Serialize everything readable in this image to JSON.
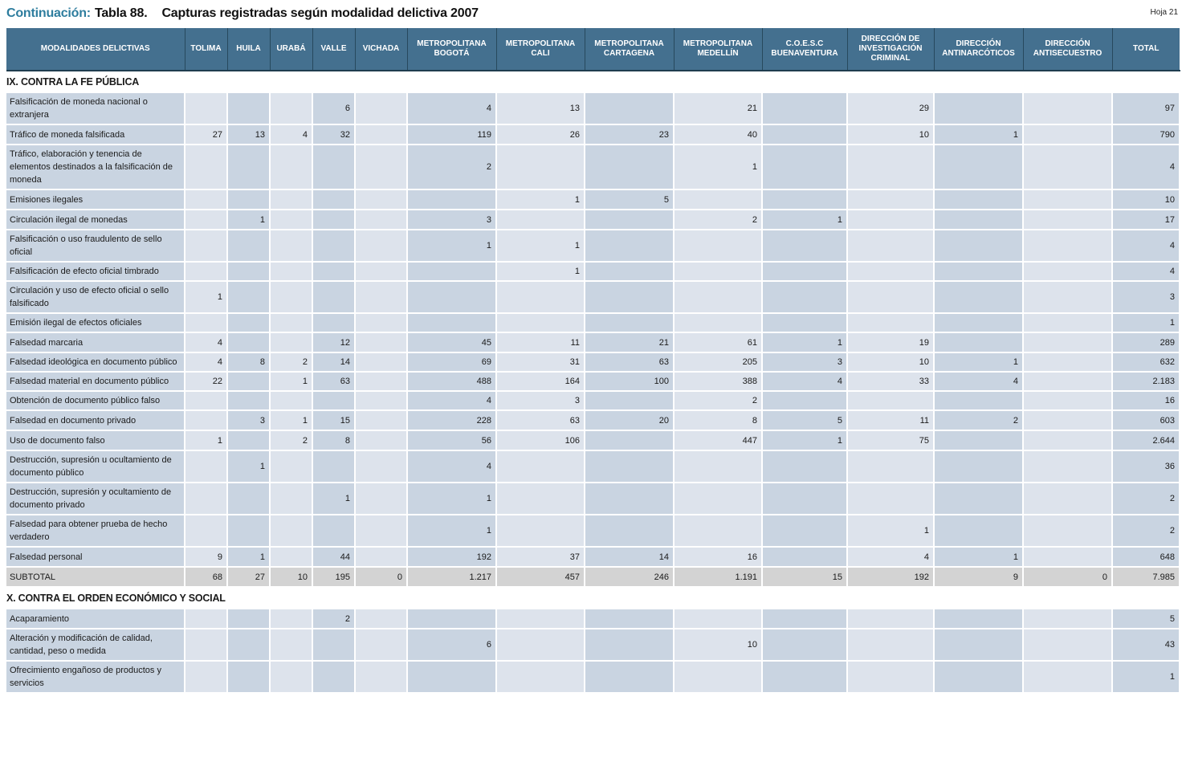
{
  "page": {
    "title_prefix": "Continuación:",
    "title_table": "Tabla 88.",
    "title_text": "Capturas registradas según modalidad delictiva 2007",
    "sheet_label": "Hoja 21"
  },
  "colors": {
    "header_bg": "#44708f",
    "header_text": "#ffffff",
    "header_divider": "#27495d",
    "cell_dark": "#c9d4e1",
    "cell_light": "#dde3ec",
    "subtotal_bg": "#d3d3d3",
    "title_accent": "#2e7d9e"
  },
  "chart_data": {
    "type": "table",
    "title": "Continuación: Tabla 88. Capturas registradas según modalidad delictiva 2007"
  },
  "table": {
    "columns": [
      "MODALIDADES DELICTIVAS",
      "TOLIMA",
      "HUILA",
      "URABÁ",
      "VALLE",
      "VICHADA",
      "METROPOLITANA BOGOTÁ",
      "METROPOLITANA CALI",
      "METROPOLITANA CARTAGENA",
      "METROPOLITANA MEDELLÍN",
      "C.O.E.S.C BUENAVENTURA",
      "DIRECCIÓN DE INVESTIGACIÓN CRIMINAL",
      "DIRECCIÓN ANTINARCÓTICOS",
      "DIRECCIÓN ANTISECUESTRO",
      "TOTAL"
    ],
    "sections": [
      {
        "title": "IX. CONTRA LA FE PÚBLICA",
        "rows": [
          {
            "label": "Falsificación de moneda nacional o extranjera",
            "values": [
              "",
              "",
              "",
              "6",
              "",
              "4",
              "13",
              "",
              "21",
              "",
              "29",
              "",
              "",
              "97"
            ]
          },
          {
            "label": "Tráfico de moneda falsificada",
            "values": [
              "27",
              "13",
              "4",
              "32",
              "",
              "119",
              "26",
              "23",
              "40",
              "",
              "10",
              "1",
              "",
              "790"
            ]
          },
          {
            "label": "Tráfico, elaboración y tenencia de elementos destinados a la falsificación de moneda",
            "values": [
              "",
              "",
              "",
              "",
              "",
              "2",
              "",
              "",
              "1",
              "",
              "",
              "",
              "",
              "4"
            ]
          },
          {
            "label": "Emisiones ilegales",
            "values": [
              "",
              "",
              "",
              "",
              "",
              "",
              "1",
              "5",
              "",
              "",
              "",
              "",
              "",
              "10"
            ]
          },
          {
            "label": "Circulación ilegal de monedas",
            "values": [
              "",
              "1",
              "",
              "",
              "",
              "3",
              "",
              "",
              "2",
              "1",
              "",
              "",
              "",
              "17"
            ]
          },
          {
            "label": "Falsificación o uso fraudulento de sello oficial",
            "values": [
              "",
              "",
              "",
              "",
              "",
              "1",
              "1",
              "",
              "",
              "",
              "",
              "",
              "",
              "4"
            ]
          },
          {
            "label": "Falsificación de efecto oficial timbrado",
            "values": [
              "",
              "",
              "",
              "",
              "",
              "",
              "1",
              "",
              "",
              "",
              "",
              "",
              "",
              "4"
            ]
          },
          {
            "label": "Circulación y uso de efecto oficial o sello falsificado",
            "values": [
              "1",
              "",
              "",
              "",
              "",
              "",
              "",
              "",
              "",
              "",
              "",
              "",
              "",
              "3"
            ]
          },
          {
            "label": "Emisión ilegal de efectos oficiales",
            "values": [
              "",
              "",
              "",
              "",
              "",
              "",
              "",
              "",
              "",
              "",
              "",
              "",
              "",
              "1"
            ]
          },
          {
            "label": "Falsedad marcaria",
            "values": [
              "4",
              "",
              "",
              "12",
              "",
              "45",
              "11",
              "21",
              "61",
              "1",
              "19",
              "",
              "",
              "289"
            ]
          },
          {
            "label": "Falsedad ideológica en documento público",
            "values": [
              "4",
              "8",
              "2",
              "14",
              "",
              "69",
              "31",
              "63",
              "205",
              "3",
              "10",
              "1",
              "",
              "632"
            ]
          },
          {
            "label": "Falsedad material en documento público",
            "values": [
              "22",
              "",
              "1",
              "63",
              "",
              "488",
              "164",
              "100",
              "388",
              "4",
              "33",
              "4",
              "",
              "2.183"
            ]
          },
          {
            "label": "Obtención de documento público falso",
            "values": [
              "",
              "",
              "",
              "",
              "",
              "4",
              "3",
              "",
              "2",
              "",
              "",
              "",
              "",
              "16"
            ]
          },
          {
            "label": "Falsedad en documento privado",
            "values": [
              "",
              "3",
              "1",
              "15",
              "",
              "228",
              "63",
              "20",
              "8",
              "5",
              "11",
              "2",
              "",
              "603"
            ]
          },
          {
            "label": "Uso de documento falso",
            "values": [
              "1",
              "",
              "2",
              "8",
              "",
              "56",
              "106",
              "",
              "447",
              "1",
              "75",
              "",
              "",
              "2.644"
            ]
          },
          {
            "label": "Destrucción, supresión u ocultamiento de documento público",
            "values": [
              "",
              "1",
              "",
              "",
              "",
              "4",
              "",
              "",
              "",
              "",
              "",
              "",
              "",
              "36"
            ]
          },
          {
            "label": "Destrucción, supresión y ocultamiento de documento privado",
            "values": [
              "",
              "",
              "",
              "1",
              "",
              "1",
              "",
              "",
              "",
              "",
              "",
              "",
              "",
              "2"
            ]
          },
          {
            "label": "Falsedad para obtener prueba de hecho verdadero",
            "values": [
              "",
              "",
              "",
              "",
              "",
              "1",
              "",
              "",
              "",
              "",
              "1",
              "",
              "",
              "2"
            ]
          },
          {
            "label": "Falsedad personal",
            "values": [
              "9",
              "1",
              "",
              "44",
              "",
              "192",
              "37",
              "14",
              "16",
              "",
              "4",
              "1",
              "",
              "648"
            ]
          }
        ],
        "subtotal": {
          "label": "SUBTOTAL",
          "values": [
            "68",
            "27",
            "10",
            "195",
            "0",
            "1.217",
            "457",
            "246",
            "1.191",
            "15",
            "192",
            "9",
            "0",
            "7.985"
          ]
        }
      },
      {
        "title": "X. CONTRA EL ORDEN ECONÓMICO Y SOCIAL",
        "rows": [
          {
            "label": "Acaparamiento",
            "values": [
              "",
              "",
              "",
              "2",
              "",
              "",
              "",
              "",
              "",
              "",
              "",
              "",
              "",
              "5"
            ]
          },
          {
            "label": "Alteración y modificación de calidad, cantidad, peso o medida",
            "values": [
              "",
              "",
              "",
              "",
              "",
              "6",
              "",
              "",
              "10",
              "",
              "",
              "",
              "",
              "43"
            ]
          },
          {
            "label": "Ofrecimiento engañoso de productos y servicios",
            "values": [
              "",
              "",
              "",
              "",
              "",
              "",
              "",
              "",
              "",
              "",
              "",
              "",
              "",
              "1"
            ]
          }
        ]
      }
    ]
  }
}
